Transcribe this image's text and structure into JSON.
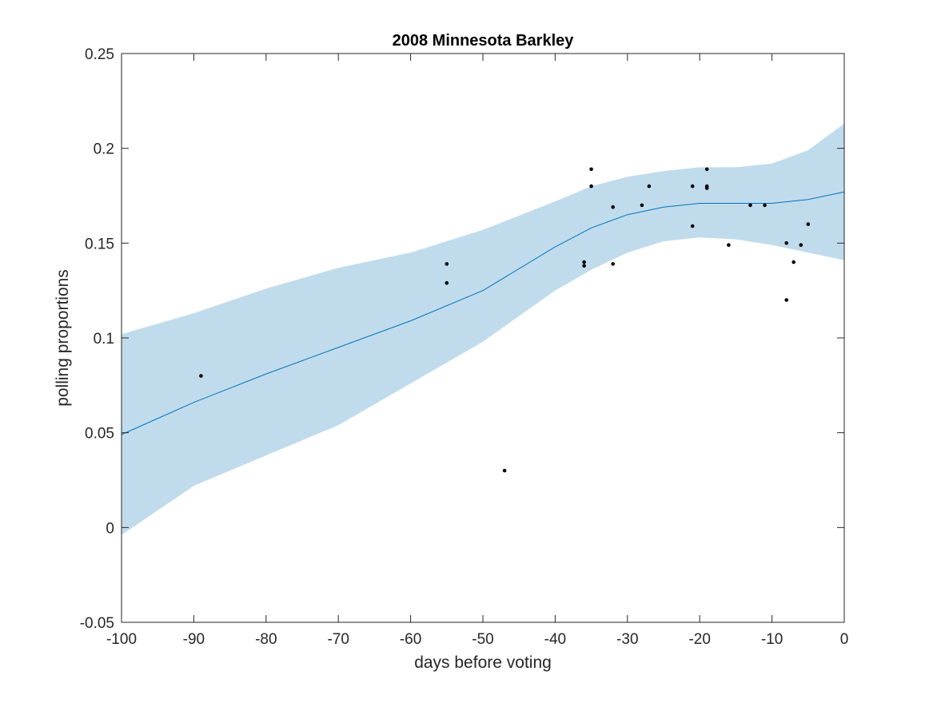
{
  "chart_data": {
    "type": "line",
    "title": "2008 Minnesota Barkley",
    "xlabel": "days before voting",
    "ylabel": "polling proportions",
    "xlim": [
      -100,
      0
    ],
    "ylim": [
      -0.05,
      0.25
    ],
    "x_ticks": [
      -100,
      -90,
      -80,
      -70,
      -60,
      -50,
      -40,
      -30,
      -20,
      -10,
      0
    ],
    "x_tick_labels": [
      "-100",
      "-90",
      "-80",
      "-70",
      "-60",
      "-50",
      "-40",
      "-30",
      "-20",
      "-10",
      "0"
    ],
    "y_ticks": [
      -0.05,
      0,
      0.05,
      0.1,
      0.15,
      0.2,
      0.25
    ],
    "y_tick_labels": [
      "-0.05",
      "0",
      "0.05",
      "0.1",
      "0.15",
      "0.2",
      "0.25"
    ],
    "grid": false,
    "colors": {
      "band": "#c0dcec",
      "line": "#0072bd",
      "points": "#000000",
      "axes": "#262626"
    },
    "series": [
      {
        "kind": "band",
        "x": [
          -100,
          -90,
          -80,
          -70,
          -60,
          -50,
          -40,
          -35,
          -30,
          -25,
          -20,
          -15,
          -10,
          -5,
          0
        ],
        "lower": [
          -0.004,
          0.022,
          0.038,
          0.054,
          0.076,
          0.098,
          0.125,
          0.136,
          0.145,
          0.151,
          0.153,
          0.152,
          0.149,
          0.145,
          0.141
        ],
        "upper": [
          0.102,
          0.113,
          0.126,
          0.137,
          0.145,
          0.157,
          0.172,
          0.18,
          0.185,
          0.188,
          0.19,
          0.19,
          0.192,
          0.199,
          0.213
        ]
      },
      {
        "kind": "line",
        "x": [
          -100,
          -90,
          -80,
          -70,
          -60,
          -50,
          -40,
          -35,
          -30,
          -25,
          -20,
          -15,
          -10,
          -5,
          0
        ],
        "y": [
          0.049,
          0.066,
          0.081,
          0.095,
          0.109,
          0.125,
          0.148,
          0.158,
          0.165,
          0.169,
          0.171,
          0.171,
          0.171,
          0.173,
          0.177
        ]
      },
      {
        "kind": "scatter",
        "points": [
          [
            -89,
            0.08
          ],
          [
            -55,
            0.139
          ],
          [
            -55,
            0.129
          ],
          [
            -47,
            0.03
          ],
          [
            -36,
            0.14
          ],
          [
            -36,
            0.138
          ],
          [
            -35,
            0.189
          ],
          [
            -35,
            0.18
          ],
          [
            -32,
            0.169
          ],
          [
            -32,
            0.139
          ],
          [
            -28,
            0.17
          ],
          [
            -27,
            0.18
          ],
          [
            -21,
            0.18
          ],
          [
            -21,
            0.159
          ],
          [
            -19,
            0.189
          ],
          [
            -19,
            0.18
          ],
          [
            -19,
            0.179
          ],
          [
            -16,
            0.149
          ],
          [
            -13,
            0.17
          ],
          [
            -11,
            0.17
          ],
          [
            -8,
            0.15
          ],
          [
            -8,
            0.12
          ],
          [
            -7,
            0.14
          ],
          [
            -6,
            0.149
          ],
          [
            -5,
            0.16
          ]
        ]
      }
    ]
  }
}
